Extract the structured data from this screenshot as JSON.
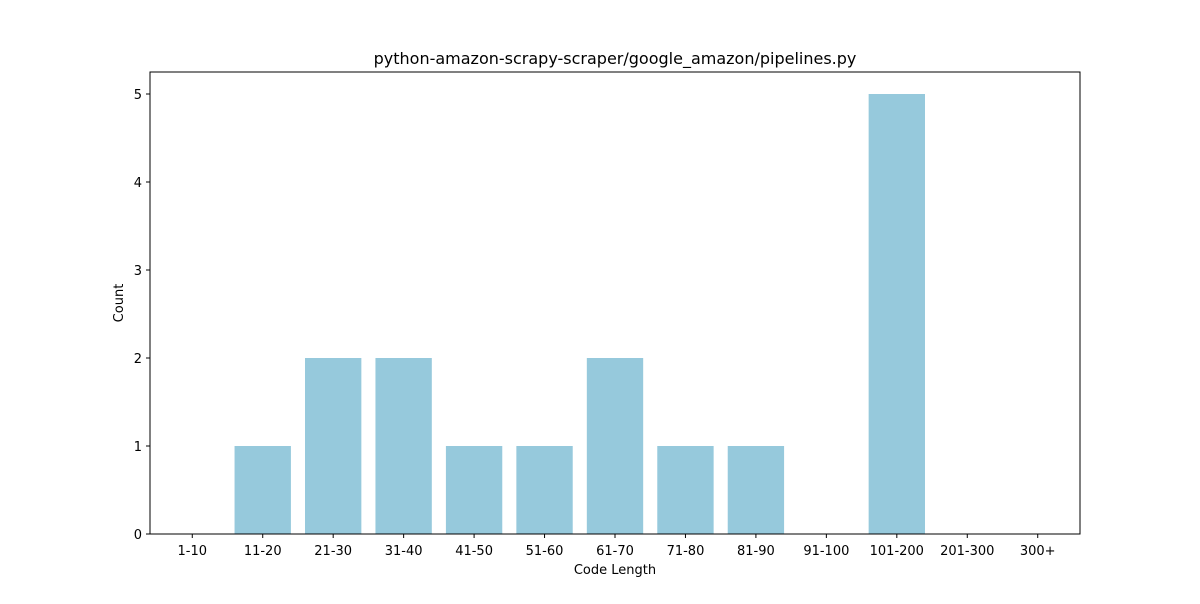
{
  "chart_data": {
    "type": "bar",
    "title": "python-amazon-scrapy-scraper/google_amazon/pipelines.py",
    "xlabel": "Code Length",
    "ylabel": "Count",
    "categories": [
      "1-10",
      "11-20",
      "21-30",
      "31-40",
      "41-50",
      "51-60",
      "61-70",
      "71-80",
      "81-90",
      "91-100",
      "101-200",
      "201-300",
      "300+"
    ],
    "values": [
      0,
      1,
      2,
      2,
      1,
      1,
      2,
      1,
      1,
      0,
      5,
      0,
      0
    ],
    "ylim": [
      0,
      5.25
    ],
    "yticks": [
      0,
      1,
      2,
      3,
      4,
      5
    ],
    "bar_color": "#96c9dc",
    "grid": false,
    "legend": "none"
  }
}
